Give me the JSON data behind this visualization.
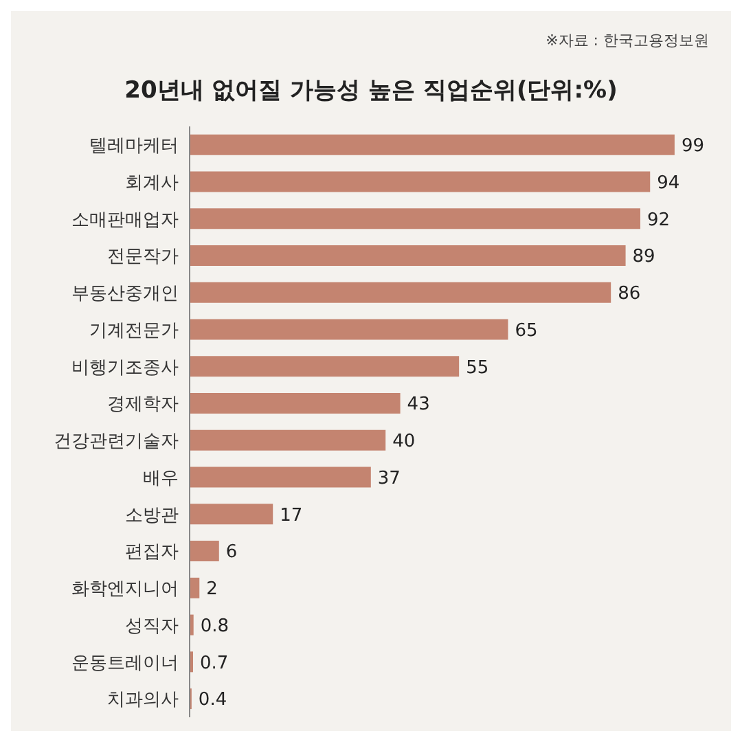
{
  "chart_data": {
    "type": "bar",
    "orientation": "horizontal",
    "title": "20년내 없어질 가능성 높은 직업순위(단위:%)",
    "annotations": [
      "※자료 : 한국고용정보원"
    ],
    "categories": [
      "텔레마케터",
      "회계사",
      "소매판매업자",
      "전문작가",
      "부동산중개인",
      "기계전문가",
      "비행기조종사",
      "경제학자",
      "건강관련기술자",
      "배우",
      "소방관",
      "편집자",
      "화학엔지니어",
      "성직자",
      "운동트레이너",
      "치과의사"
    ],
    "values": [
      99,
      94,
      92,
      89,
      86,
      65,
      55,
      43,
      40,
      37,
      17,
      6,
      2,
      0.8,
      0.7,
      0.4
    ],
    "color": "#c48470",
    "data_labels": true,
    "tick_labels": "y"
  }
}
